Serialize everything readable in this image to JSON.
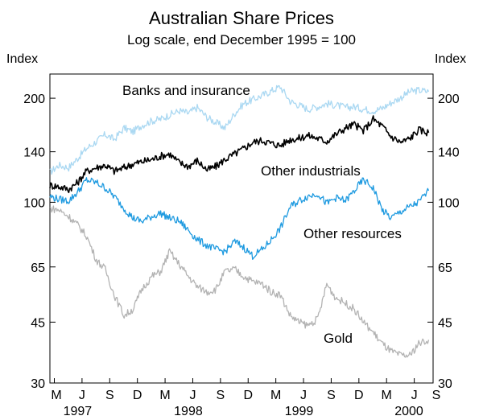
{
  "chart_data": {
    "type": "line",
    "title": "Australian Share Prices",
    "subtitle": "Log scale, end December 1995 = 100",
    "ylabel_left": "Index",
    "ylabel_right": "Index",
    "yscale": "log",
    "ylim": [
      30,
      235
    ],
    "yticks": [
      30,
      45,
      65,
      100,
      140,
      200
    ],
    "xlim": [
      1997.25,
      2000.71
    ],
    "x_tick_labels": [
      "M",
      "J",
      "S",
      "D",
      "M",
      "J",
      "S",
      "D",
      "M",
      "J",
      "S",
      "D",
      "M",
      "J",
      "S"
    ],
    "x_tick_values": [
      1997.29,
      1997.54,
      1997.79,
      1998.04,
      1998.29,
      1998.54,
      1998.79,
      1999.04,
      1999.29,
      1999.54,
      1999.79,
      2000.04,
      2000.29,
      2000.54,
      2000.79
    ],
    "x_year_labels": [
      "1997",
      "1998",
      "1999",
      "2000"
    ],
    "x_year_positions": [
      1997.5,
      1998.5,
      1999.5,
      2000.5
    ],
    "series": [
      {
        "name": "Banks and insurance",
        "color": "#aad8f2",
        "x": [
          1997.25,
          1997.33,
          1997.42,
          1997.5,
          1997.58,
          1997.67,
          1997.75,
          1997.83,
          1997.92,
          1998.0,
          1998.08,
          1998.17,
          1998.25,
          1998.33,
          1998.42,
          1998.5,
          1998.58,
          1998.67,
          1998.75,
          1998.83,
          1998.92,
          1999.0,
          1999.08,
          1999.17,
          1999.25,
          1999.33,
          1999.42,
          1999.5,
          1999.58,
          1999.67,
          1999.75,
          1999.83,
          1999.92,
          2000.0,
          2000.08,
          2000.17,
          2000.25,
          2000.33,
          2000.42,
          2000.5,
          2000.58,
          2000.67
        ],
        "values": [
          122,
          128,
          126,
          134,
          143,
          150,
          157,
          152,
          164,
          160,
          167,
          172,
          174,
          179,
          184,
          181,
          188,
          176,
          170,
          164,
          181,
          193,
          198,
          204,
          210,
          216,
          196,
          191,
          186,
          189,
          193,
          191,
          188,
          189,
          186,
          184,
          187,
          194,
          201,
          209,
          211,
          209
        ]
      },
      {
        "name": "Other industrials",
        "color": "#000000",
        "x": [
          1997.25,
          1997.33,
          1997.42,
          1997.5,
          1997.58,
          1997.67,
          1997.75,
          1997.83,
          1997.92,
          1998.0,
          1998.08,
          1998.17,
          1998.25,
          1998.33,
          1998.42,
          1998.5,
          1998.58,
          1998.67,
          1998.75,
          1998.83,
          1998.92,
          1999.0,
          1999.08,
          1999.17,
          1999.25,
          1999.33,
          1999.42,
          1999.5,
          1999.58,
          1999.67,
          1999.75,
          1999.83,
          1999.92,
          2000.0,
          2000.08,
          2000.17,
          2000.25,
          2000.33,
          2000.42,
          2000.5,
          2000.58,
          2000.67
        ],
        "values": [
          112,
          111,
          109,
          114,
          123,
          126,
          128,
          123,
          126,
          129,
          131,
          133,
          136,
          138,
          130,
          127,
          132,
          124,
          127,
          133,
          138,
          143,
          149,
          151,
          148,
          146,
          152,
          153,
          156,
          153,
          150,
          157,
          164,
          168,
          161,
          174,
          166,
          155,
          149,
          153,
          162,
          159
        ]
      },
      {
        "name": "Other resources",
        "color": "#1e9ae0",
        "x": [
          1997.25,
          1997.33,
          1997.42,
          1997.5,
          1997.58,
          1997.67,
          1997.75,
          1997.83,
          1997.92,
          1998.0,
          1998.08,
          1998.17,
          1998.25,
          1998.33,
          1998.42,
          1998.5,
          1998.58,
          1998.67,
          1998.75,
          1998.83,
          1998.92,
          1999.0,
          1999.08,
          1999.17,
          1999.25,
          1999.33,
          1999.42,
          1999.5,
          1999.58,
          1999.67,
          1999.75,
          1999.83,
          1999.92,
          2000.0,
          2000.08,
          2000.17,
          2000.25,
          2000.33,
          2000.42,
          2000.5,
          2000.58,
          2000.67
        ],
        "values": [
          104,
          102,
          101,
          107,
          116,
          114,
          110,
          104,
          96,
          90,
          88,
          91,
          93,
          90,
          88,
          83,
          78,
          75,
          73,
          72,
          77,
          74,
          70,
          73,
          78,
          84,
          97,
          101,
          104,
          106,
          99,
          103,
          101,
          108,
          116,
          110,
          95,
          90,
          94,
          97,
          100,
          108
        ]
      },
      {
        "name": "Gold",
        "color": "#b3b3b3",
        "x": [
          1997.25,
          1997.33,
          1997.42,
          1997.5,
          1997.58,
          1997.67,
          1997.75,
          1997.83,
          1997.92,
          1998.0,
          1998.08,
          1998.17,
          1998.25,
          1998.33,
          1998.42,
          1998.5,
          1998.58,
          1998.67,
          1998.75,
          1998.83,
          1998.92,
          1999.0,
          1999.08,
          1999.17,
          1999.25,
          1999.33,
          1999.42,
          1999.5,
          1999.58,
          1999.67,
          1999.75,
          1999.83,
          1999.92,
          2000.0,
          2000.08,
          2000.17,
          2000.25,
          2000.33,
          2000.42,
          2000.5,
          2000.58,
          2000.67
        ],
        "values": [
          96,
          95,
          91,
          86,
          80,
          68,
          64,
          54,
          47,
          49,
          56,
          61,
          63,
          72,
          66,
          61,
          57,
          55,
          56,
          63,
          64,
          61,
          59,
          58,
          55,
          54,
          47,
          45,
          44,
          46,
          58,
          53,
          51,
          49,
          45,
          42,
          39,
          37,
          36,
          36,
          39,
          40
        ]
      }
    ],
    "annotations": [
      {
        "text": "Banks and insurance",
        "series": "Banks and insurance"
      },
      {
        "text": "Other industrials",
        "series": "Other industrials"
      },
      {
        "text": "Other resources",
        "series": "Other resources"
      },
      {
        "text": "Gold",
        "series": "Gold"
      }
    ],
    "grid": false
  }
}
